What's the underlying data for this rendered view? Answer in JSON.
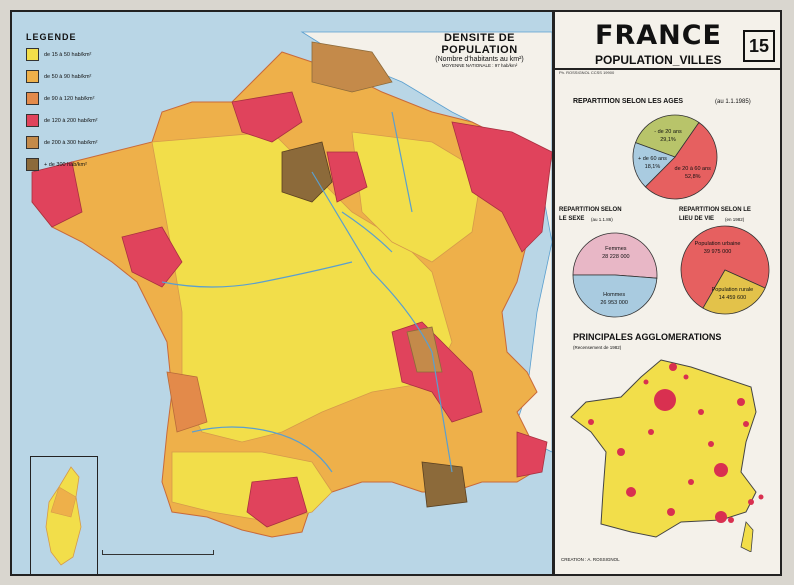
{
  "header": {
    "title": "FRANCE",
    "subtitle": "POPULATION_VILLES",
    "plate_number": "15",
    "editor": "Ph. ROSSIGNOL    CCSS      19900"
  },
  "density": {
    "title": "DENSITE DE POPULATION",
    "subtitle": "(Nombre d'habitants au km²)",
    "average": "MOYENNE NATIONALE : 97 hab/km²"
  },
  "legend": {
    "title": "LEGENDE",
    "items": [
      {
        "label": "de 15 à 50   hab/km²",
        "color": "#f2de4a"
      },
      {
        "label": "de 50 à 90   hab/km²",
        "color": "#eeb04a"
      },
      {
        "label": "de 90 à 120  hab/km²",
        "color": "#e38a4a"
      },
      {
        "label": "de 120 à 200 hab/km²",
        "color": "#e0435c"
      },
      {
        "label": "de 200 à 300 hab/km²",
        "color": "#c48a4a"
      },
      {
        "label": "+ de 300 hab/km²",
        "color": "#8c6a3a"
      }
    ]
  },
  "ages": {
    "title": "REPARTITION  SELON  LES  AGES",
    "date": "(au 1.1.1985)",
    "slices": [
      {
        "label": "- de 20 ans",
        "value": "29,1%",
        "share": 29.1,
        "color": "#b8c46a"
      },
      {
        "label": "de 20 à 60 ans",
        "value": "52,8%",
        "share": 52.8,
        "color": "#e66060"
      },
      {
        "label": "+ de 60 ans",
        "value": "18,1%",
        "share": 18.1,
        "color": "#a9cbe0"
      }
    ]
  },
  "sexe": {
    "title1": "REPARTITION SELON",
    "title2": "LE SEXE",
    "date": "(au 1.1.86)",
    "slices": [
      {
        "label": "Femmes",
        "value": "28 228 000",
        "share": 51.2,
        "color": "#e8b7c6"
      },
      {
        "label": "Hommes",
        "value": "26 953 000",
        "share": 48.8,
        "color": "#a9cbe0"
      }
    ]
  },
  "lieu": {
    "title1": "REPARTITION SELON LE",
    "title2": "LIEU DE VIE",
    "date": "(en 1982)",
    "slices": [
      {
        "label": "Population  urbaine",
        "value": "39 975 000",
        "share": 73.4,
        "color": "#e66060"
      },
      {
        "label": "Population rurale",
        "value": "14 459 600",
        "share": 26.6,
        "color": "#e3c24a"
      }
    ]
  },
  "agglo": {
    "title": "PRINCIPALES   AGGLOMERATIONS",
    "note": "(Recensement de 1982)"
  },
  "credit": "CREATION : A. ROSSIGNOL",
  "colors": {
    "sea": "#b9d6e6",
    "paper": "#f4f1ea",
    "river": "#5a9fcf",
    "city": "#d93050"
  }
}
